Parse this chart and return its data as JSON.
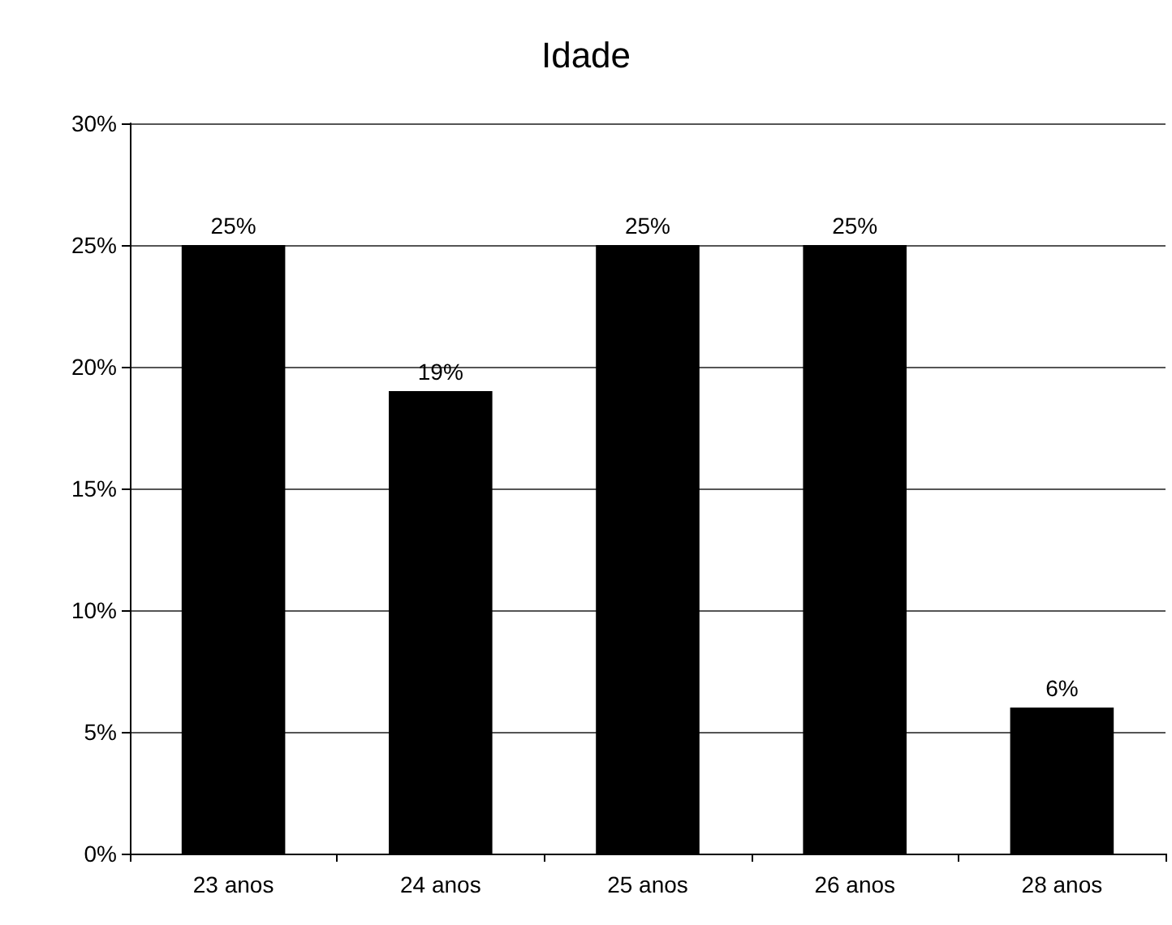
{
  "chart_data": {
    "type": "bar",
    "title": "Idade",
    "categories": [
      "23 anos",
      "24 anos",
      "25 anos",
      "26 anos",
      "28 anos"
    ],
    "values": [
      25,
      19,
      25,
      25,
      6
    ],
    "value_labels": [
      "25%",
      "19%",
      "25%",
      "25%",
      "6%"
    ],
    "color": "#000000",
    "ylim": [
      0,
      30
    ],
    "yticks": [
      {
        "value": 0,
        "label": "0%"
      },
      {
        "value": 5,
        "label": "5%"
      },
      {
        "value": 10,
        "label": "10%"
      },
      {
        "value": 15,
        "label": "15%"
      },
      {
        "value": 20,
        "label": "20%"
      },
      {
        "value": 25,
        "label": "25%"
      },
      {
        "value": 30,
        "label": "30%"
      }
    ],
    "grid": "y"
  }
}
